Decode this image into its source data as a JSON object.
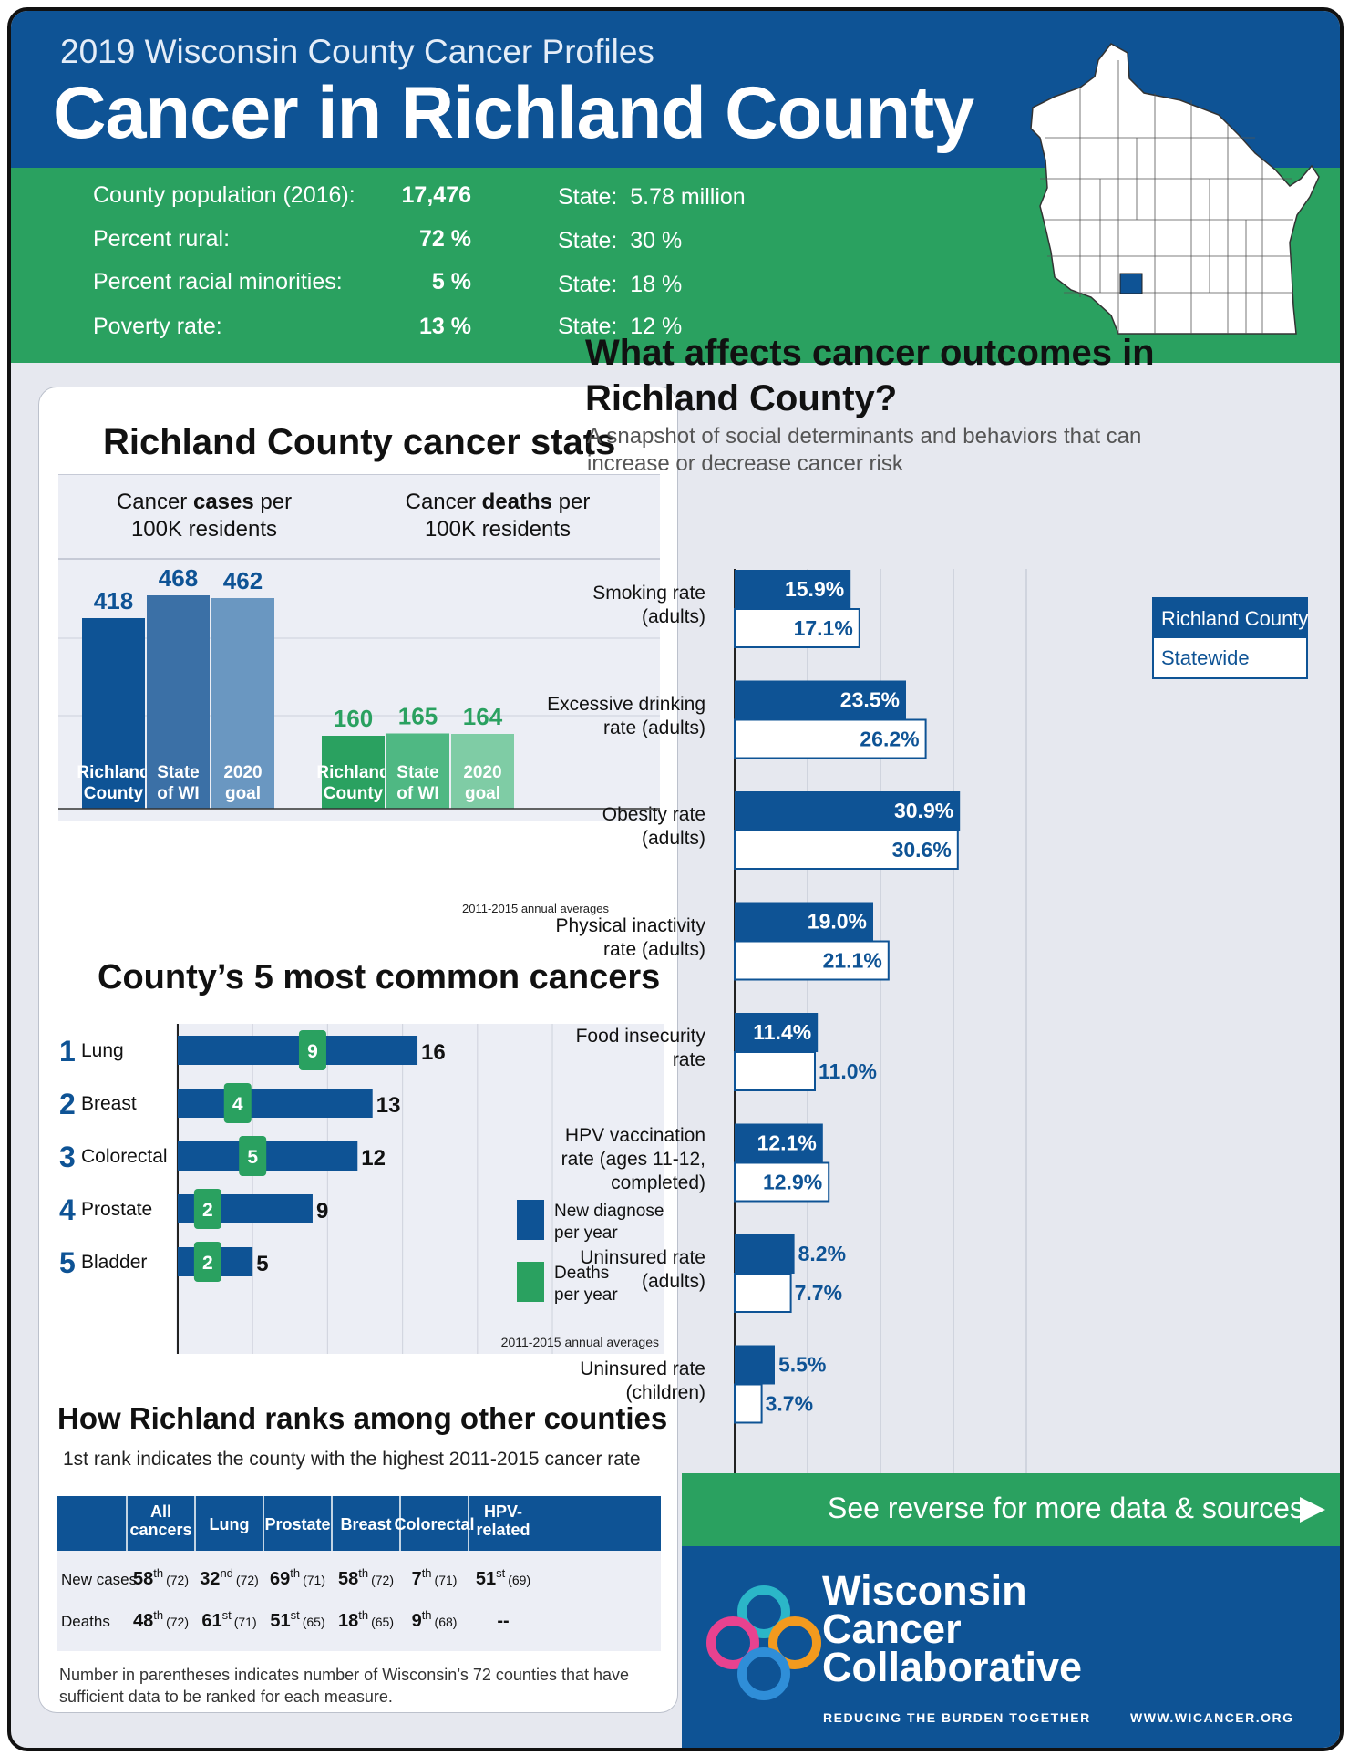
{
  "header": {
    "subtitle": "2019 Wisconsin County Cancer Profiles",
    "title": "Cancer in Richland County"
  },
  "demographics": [
    {
      "label": "County population (2016):",
      "value": "17,476",
      "state_label": "State:",
      "state_value": "5.78 million"
    },
    {
      "label": "Percent rural:",
      "value": "72 %",
      "state_label": "State:",
      "state_value": "30 %"
    },
    {
      "label": "Percent racial minorities:",
      "value": "5 %",
      "state_label": "State:",
      "state_value": "18 %"
    },
    {
      "label": "Poverty rate:",
      "value": "13 %",
      "state_label": "State:",
      "state_value": "12 %"
    }
  ],
  "stats_card": {
    "title": "Richland County cancer stats"
  },
  "colors": {
    "navy": "#0e5395",
    "green": "#2aa160",
    "cases_bars": [
      "#0e5395",
      "#3b70a6",
      "#6a97c1"
    ],
    "deaths_bars": [
      "#2aa160",
      "#4fb883",
      "#7fcca5"
    ]
  },
  "chart_data": [
    {
      "type": "bar",
      "id": "cases",
      "title": "Cancer cases per 100K residents",
      "title_plain": "Cancer ",
      "title_bold": "cases",
      "title_rest": " per",
      "title_line2": "100K residents",
      "categories": [
        "Richland County",
        "State of WI",
        "2020 goal"
      ],
      "category_lines": [
        [
          "Richland",
          "County"
        ],
        [
          "State",
          "of WI"
        ],
        [
          "2020",
          "goal"
        ]
      ],
      "values": [
        418,
        468,
        462
      ],
      "ylim": [
        0,
        530
      ]
    },
    {
      "type": "bar",
      "id": "deaths",
      "title": "Cancer deaths per 100K residents",
      "title_plain": "Cancer ",
      "title_bold": "deaths",
      "title_rest": " per",
      "title_line2": "100K residents",
      "categories": [
        "Richland County",
        "State of WI",
        "2020 goal"
      ],
      "category_lines": [
        [
          "Richland",
          "County"
        ],
        [
          "State",
          "of WI"
        ],
        [
          "2020",
          "goal"
        ]
      ],
      "values": [
        160,
        165,
        164
      ],
      "ylim": [
        0,
        530
      ],
      "note": "2011-2015 annual averages"
    },
    {
      "type": "bar",
      "id": "common",
      "title": "County’s 5 most common cancers",
      "ranks": [
        "1",
        "2",
        "3",
        "4",
        "5"
      ],
      "categories": [
        "Lung",
        "Breast",
        "Colorectal",
        "Prostate",
        "Bladder"
      ],
      "series": [
        {
          "name": "New diagnoses per year",
          "values": [
            16,
            13,
            12,
            9,
            5
          ]
        },
        {
          "name": "Deaths per year",
          "values": [
            9,
            4,
            5,
            2,
            2
          ]
        }
      ],
      "legend_lines": [
        [
          "New diagnoses",
          "per year"
        ],
        [
          "Deaths",
          "per year"
        ]
      ],
      "xlim": [
        0,
        25
      ],
      "note": "2011-2015 annual averages"
    },
    {
      "type": "bar",
      "id": "outcomes",
      "title": "What affects cancer outcomes in Richland County?",
      "subtitle": "A snapshot of social determinants and behaviors that can increase or decrease cancer risk",
      "categories": [
        "Smoking rate (adults)",
        "Excessive drinking rate (adults)",
        "Obesity rate (adults)",
        "Physical inactivity rate (adults)",
        "Food insecurity rate",
        "HPV vaccination rate (ages 11-12, completed)",
        "Uninsured rate (adults)",
        "Uninsured rate (children)"
      ],
      "category_lines": [
        [
          "Smoking rate",
          "(adults)"
        ],
        [
          "Excessive drinking",
          "rate (adults)"
        ],
        [
          "Obesity rate",
          "(adults)"
        ],
        [
          "Physical inactivity",
          "rate (adults)"
        ],
        [
          "Food insecurity",
          "rate"
        ],
        [
          "HPV vaccination",
          "rate (ages 11-12,",
          "completed)"
        ],
        [
          "Uninsured rate",
          "(adults)"
        ],
        [
          "Uninsured rate",
          "(children)"
        ]
      ],
      "series": [
        {
          "name": "Richland County",
          "values": [
            15.9,
            23.5,
            30.9,
            19.0,
            11.4,
            12.1,
            8.2,
            5.5
          ],
          "labels": [
            "15.9%",
            "23.5%",
            "30.9%",
            "19.0%",
            "11.4%",
            "12.1%",
            "8.2%",
            "5.5%"
          ]
        },
        {
          "name": "Statewide",
          "values": [
            17.1,
            26.2,
            30.6,
            21.1,
            11.0,
            12.9,
            7.7,
            3.7
          ],
          "labels": [
            "17.1%",
            "26.2%",
            "30.6%",
            "21.1%",
            "11.0%",
            "12.9%",
            "7.7%",
            "3.7%"
          ]
        }
      ],
      "xlim": [
        0,
        40
      ]
    }
  ],
  "rankings": {
    "title": "How Richland ranks among other counties",
    "subtitle": "1st rank indicates the county with the highest 2011-2015 cancer rate",
    "columns": [
      "",
      "All cancers",
      "Lung",
      "Prostate",
      "Breast",
      "Colorectal",
      "HPV-related"
    ],
    "column_lines": [
      [
        ""
      ],
      [
        "All",
        "cancers"
      ],
      [
        "Lung"
      ],
      [
        "Prostate"
      ],
      [
        "Breast"
      ],
      [
        "Colorectal"
      ],
      [
        "HPV-",
        "related"
      ]
    ],
    "rows": [
      {
        "label": "New cases",
        "cells": [
          {
            "n": "58",
            "s": "th",
            "p": "(72)"
          },
          {
            "n": "32",
            "s": "nd",
            "p": "(72)"
          },
          {
            "n": "69",
            "s": "th",
            "p": "(71)"
          },
          {
            "n": "58",
            "s": "th",
            "p": "(72)"
          },
          {
            "n": "7",
            "s": "th",
            "p": "(71)"
          },
          {
            "n": "51",
            "s": "st",
            "p": "(69)"
          }
        ]
      },
      {
        "label": "Deaths",
        "cells": [
          {
            "n": "48",
            "s": "th",
            "p": "(72)"
          },
          {
            "n": "61",
            "s": "st",
            "p": "(71)"
          },
          {
            "n": "51",
            "s": "st",
            "p": "(65)"
          },
          {
            "n": "18",
            "s": "th",
            "p": "(65)"
          },
          {
            "n": "9",
            "s": "th",
            "p": "(68)"
          },
          {
            "n": "--",
            "s": "",
            "p": ""
          }
        ]
      }
    ],
    "footnote": "Number in parentheses indicates number of Wisconsin’s 72 counties that have sufficient data to be ranked for each measure."
  },
  "footer": {
    "cta": "See reverse for more data & sources",
    "org_lines": [
      "Wisconsin",
      "Cancer",
      "Collaborative"
    ],
    "tagline": "REDUCING THE BURDEN TOGETHER",
    "url": "WWW.WICANCER.ORG"
  }
}
